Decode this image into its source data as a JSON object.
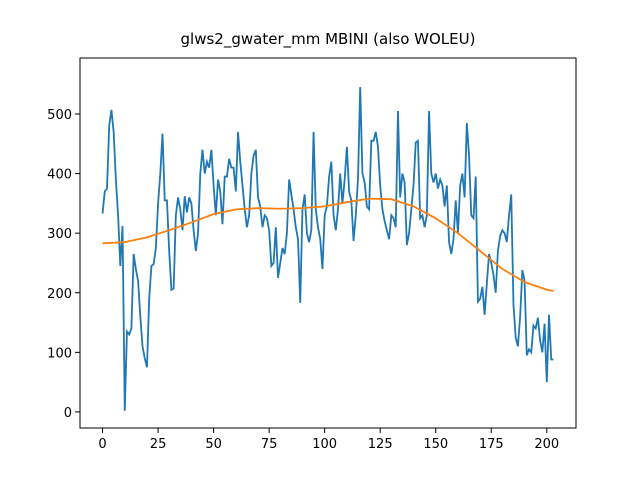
{
  "chart_data": {
    "type": "line",
    "title": "glws2_gwater_mm MBINI (also WOLEU)",
    "xlim": [
      -10.15,
      213.15
    ],
    "xticks": [
      0,
      25,
      50,
      75,
      100,
      125,
      150,
      175,
      200
    ],
    "ylim": [
      -27,
      594
    ],
    "yticks": [
      0,
      100,
      200,
      300,
      400,
      500
    ],
    "grid": false,
    "series": [
      {
        "color": "#1f77b4",
        "x": [
          0,
          1,
          2,
          3,
          4,
          5,
          6,
          7,
          8,
          9,
          10,
          11,
          12,
          13,
          14,
          15,
          16,
          17,
          18,
          19,
          20,
          21,
          22,
          23,
          24,
          25,
          26,
          27,
          28,
          29,
          30,
          31,
          32,
          33,
          34,
          35,
          36,
          37,
          38,
          39,
          40,
          41,
          42,
          43,
          44,
          45,
          46,
          47,
          48,
          49,
          50,
          51,
          52,
          53,
          54,
          55,
          56,
          57,
          58,
          59,
          60,
          61,
          62,
          63,
          64,
          65,
          66,
          67,
          68,
          69,
          70,
          71,
          72,
          73,
          74,
          75,
          76,
          77,
          78,
          79,
          80,
          81,
          82,
          83,
          84,
          85,
          86,
          87,
          88,
          89,
          90,
          91,
          92,
          93,
          94,
          95,
          96,
          97,
          98,
          99,
          100,
          101,
          102,
          103,
          104,
          105,
          106,
          107,
          108,
          109,
          110,
          111,
          112,
          113,
          114,
          115,
          116,
          117,
          118,
          119,
          120,
          121,
          122,
          123,
          124,
          125,
          126,
          127,
          128,
          129,
          130,
          131,
          132,
          133,
          134,
          135,
          136,
          137,
          138,
          139,
          140,
          141,
          142,
          143,
          144,
          145,
          146,
          147,
          148,
          149,
          150,
          151,
          152,
          153,
          154,
          155,
          156,
          157,
          158,
          159,
          160,
          161,
          162,
          163,
          164,
          165,
          166,
          167,
          168,
          169,
          170,
          171,
          172,
          173,
          174,
          175,
          176,
          177,
          178,
          179,
          180,
          181,
          182,
          183,
          184,
          185,
          186,
          187,
          188,
          189,
          190,
          191,
          192,
          193,
          194,
          195,
          196,
          197,
          198,
          199,
          200,
          201,
          202,
          203
        ],
        "values": [
          333,
          370,
          375,
          480,
          507,
          470,
          390,
          330,
          245,
          312,
          2,
          135,
          130,
          140,
          265,
          240,
          220,
          160,
          110,
          90,
          75,
          190,
          245,
          248,
          275,
          350,
          400,
          467,
          355,
          355,
          270,
          205,
          207,
          330,
          360,
          340,
          305,
          362,
          335,
          360,
          350,
          305,
          270,
          300,
          400,
          440,
          400,
          420,
          410,
          440,
          380,
          330,
          390,
          370,
          315,
          395,
          395,
          425,
          410,
          410,
          370,
          470,
          420,
          380,
          340,
          310,
          330,
          400,
          430,
          440,
          360,
          345,
          310,
          330,
          325,
          305,
          245,
          250,
          310,
          225,
          250,
          275,
          265,
          300,
          390,
          365,
          340,
          310,
          290,
          183,
          340,
          365,
          300,
          285,
          305,
          470,
          340,
          310,
          290,
          240,
          330,
          345,
          395,
          420,
          330,
          305,
          340,
          400,
          350,
          390,
          445,
          370,
          355,
          287,
          330,
          390,
          545,
          400,
          385,
          345,
          340,
          455,
          455,
          470,
          445,
          380,
          340,
          320,
          305,
          290,
          330,
          325,
          310,
          505,
          360,
          400,
          385,
          280,
          300,
          340,
          380,
          452,
          455,
          325,
          330,
          310,
          330,
          505,
          400,
          385,
          400,
          375,
          390,
          380,
          345,
          380,
          285,
          265,
          290,
          355,
          300,
          380,
          400,
          360,
          485,
          430,
          330,
          325,
          395,
          185,
          190,
          210,
          163,
          215,
          265,
          250,
          230,
          200,
          270,
          295,
          305,
          300,
          285,
          330,
          365,
          180,
          125,
          110,
          160,
          238,
          220,
          95,
          105,
          100,
          145,
          140,
          158,
          120,
          100,
          148,
          50,
          163,
          88,
          88
        ]
      },
      {
        "color": "#ff7f0e",
        "x": [
          0,
          10,
          20,
          30,
          40,
          50,
          60,
          70,
          80,
          90,
          100,
          110,
          120,
          130,
          140,
          150,
          160,
          170,
          180,
          190,
          200,
          203
        ],
        "values": [
          283,
          285,
          293,
          305,
          318,
          332,
          340,
          342,
          341,
          342,
          345,
          352,
          358,
          357,
          345,
          325,
          300,
          270,
          240,
          218,
          205,
          203
        ]
      }
    ]
  }
}
